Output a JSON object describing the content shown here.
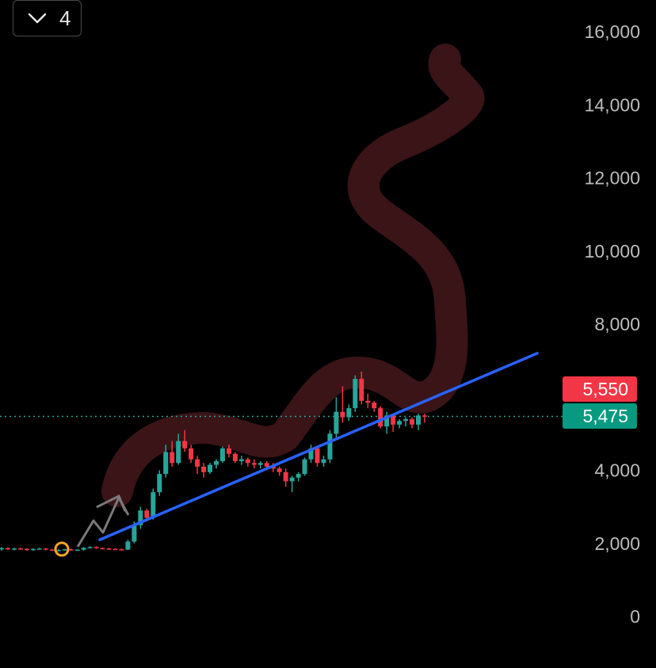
{
  "toolbar": {
    "collapse_count": "4",
    "collapse_icon": "chevron-down-icon"
  },
  "colors": {
    "background": "#000000",
    "up": "#26a69a",
    "down": "#f23645",
    "trendline": "#2962ff",
    "scribble": "#3a1417",
    "axis_text": "#bdbdbd",
    "marker": "#f5a623"
  },
  "chart_data": {
    "type": "candlestick",
    "y_ticks": [
      "16,000",
      "14,000",
      "12,000",
      "10,000",
      "8,000",
      "4,000",
      "2,000",
      "0"
    ],
    "ylim": [
      0,
      16000
    ],
    "price_badges": [
      {
        "label": "5,550",
        "value": 5550,
        "color": "#f23645"
      },
      {
        "label": "5,475",
        "value": 5475,
        "color": "#089981"
      }
    ],
    "current_price_line": 5475,
    "candles": [
      [
        1850,
        1900,
        1800,
        1870
      ],
      [
        1870,
        1890,
        1820,
        1840
      ],
      [
        1840,
        1880,
        1810,
        1860
      ],
      [
        1860,
        1880,
        1830,
        1850
      ],
      [
        1850,
        1870,
        1800,
        1820
      ],
      [
        1820,
        1860,
        1800,
        1850
      ],
      [
        1850,
        1880,
        1830,
        1860
      ],
      [
        1860,
        1870,
        1810,
        1830
      ],
      [
        1830,
        1850,
        1790,
        1810
      ],
      [
        1810,
        1840,
        1780,
        1820
      ],
      [
        1820,
        1850,
        1800,
        1840
      ],
      [
        1840,
        1860,
        1800,
        1810
      ],
      [
        1810,
        1840,
        1790,
        1830
      ],
      [
        1830,
        1900,
        1800,
        1880
      ],
      [
        1880,
        1920,
        1860,
        1900
      ],
      [
        1900,
        1920,
        1850,
        1870
      ],
      [
        1870,
        1890,
        1840,
        1860
      ],
      [
        1860,
        1880,
        1830,
        1850
      ],
      [
        1850,
        1870,
        1820,
        1840
      ],
      [
        1840,
        1860,
        1810,
        1830
      ],
      [
        1830,
        2100,
        1820,
        2050
      ],
      [
        2050,
        2600,
        2000,
        2500
      ],
      [
        2500,
        3000,
        2400,
        2900
      ],
      [
        2900,
        2950,
        2600,
        2700
      ],
      [
        2700,
        3500,
        2650,
        3400
      ],
      [
        3400,
        4000,
        3300,
        3900
      ],
      [
        3900,
        4700,
        3800,
        4500
      ],
      [
        4500,
        4800,
        4100,
        4200
      ],
      [
        4200,
        5000,
        4150,
        4800
      ],
      [
        4800,
        5100,
        4500,
        4600
      ],
      [
        4600,
        4700,
        4200,
        4300
      ],
      [
        4300,
        4400,
        3900,
        4100
      ],
      [
        4100,
        4200,
        3800,
        3950
      ],
      [
        3950,
        4200,
        3900,
        4150
      ],
      [
        4150,
        4300,
        4050,
        4250
      ],
      [
        4250,
        4650,
        4200,
        4600
      ],
      [
        4600,
        4700,
        4350,
        4450
      ],
      [
        4450,
        4500,
        4200,
        4250
      ],
      [
        4250,
        4400,
        4150,
        4300
      ],
      [
        4300,
        4350,
        4100,
        4200
      ],
      [
        4200,
        4300,
        4050,
        4150
      ],
      [
        4150,
        4250,
        4050,
        4200
      ],
      [
        4200,
        4250,
        4050,
        4100
      ],
      [
        4100,
        4200,
        3950,
        4050
      ],
      [
        4050,
        4100,
        3850,
        3950
      ],
      [
        3950,
        4050,
        3550,
        3700
      ],
      [
        3700,
        3850,
        3400,
        3800
      ],
      [
        3800,
        3950,
        3700,
        3900
      ],
      [
        3900,
        4350,
        3850,
        4300
      ],
      [
        4300,
        4700,
        4200,
        4600
      ],
      [
        4600,
        4650,
        4100,
        4200
      ],
      [
        4200,
        4400,
        4100,
        4300
      ],
      [
        4300,
        5100,
        4200,
        5000
      ],
      [
        5000,
        6000,
        4900,
        5600
      ],
      [
        5600,
        6300,
        5300,
        5450
      ],
      [
        5450,
        5800,
        5350,
        5700
      ],
      [
        5700,
        6600,
        5600,
        6500
      ],
      [
        6500,
        6700,
        5800,
        5900
      ],
      [
        5900,
        6100,
        5700,
        5850
      ],
      [
        5850,
        5900,
        5600,
        5700
      ],
      [
        5700,
        5750,
        5150,
        5200
      ],
      [
        5200,
        5600,
        5000,
        5500
      ],
      [
        5500,
        5550,
        5050,
        5250
      ],
      [
        5250,
        5400,
        5150,
        5350
      ],
      [
        5350,
        5450,
        5200,
        5400
      ],
      [
        5400,
        5450,
        5150,
        5250
      ],
      [
        5250,
        5550,
        5100,
        5500
      ],
      [
        5500,
        5550,
        5300,
        5475
      ]
    ],
    "trendline": [
      [
        0,
        2100
      ],
      [
        1,
        7200
      ]
    ]
  }
}
